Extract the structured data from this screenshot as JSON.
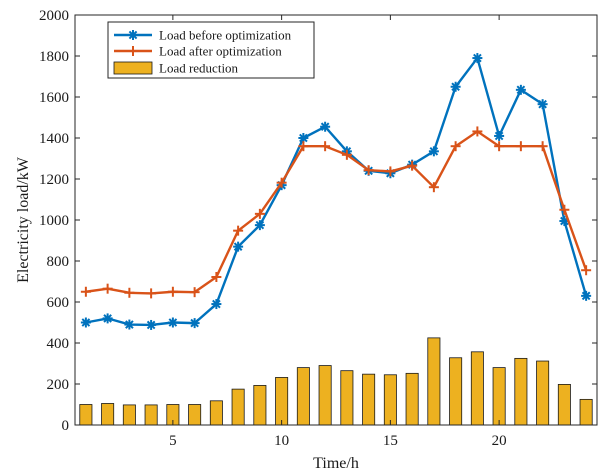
{
  "chart_data": {
    "type": "line",
    "xlabel": "Time/h",
    "ylabel": "Electricity load/kW",
    "xlim": [
      0.5,
      24.5
    ],
    "ylim": [
      0,
      2000
    ],
    "xticks": [
      5,
      10,
      15,
      20
    ],
    "yticks": [
      0,
      200,
      400,
      600,
      800,
      1000,
      1200,
      1400,
      1600,
      1800,
      2000
    ],
    "x": [
      1,
      2,
      3,
      4,
      5,
      6,
      7,
      8,
      9,
      10,
      11,
      12,
      13,
      14,
      15,
      16,
      17,
      18,
      19,
      20,
      21,
      22,
      23,
      24
    ],
    "grid": false,
    "legend_position": "top-left",
    "series": [
      {
        "name": "Load before optimization",
        "type": "line",
        "marker": "asterisk",
        "color": "#0072BD",
        "values": [
          500,
          520,
          490,
          488,
          500,
          497,
          590,
          870,
          975,
          1170,
          1400,
          1455,
          1335,
          1240,
          1228,
          1270,
          1335,
          1650,
          1790,
          1410,
          1635,
          1565,
          995,
          630
        ]
      },
      {
        "name": "Load after optimization",
        "type": "line",
        "marker": "plus",
        "color": "#D95319",
        "values": [
          650,
          665,
          645,
          642,
          650,
          648,
          722,
          948,
          1030,
          1182,
          1360,
          1360,
          1318,
          1243,
          1237,
          1265,
          1160,
          1360,
          1432,
          1360,
          1360,
          1360,
          1050,
          755
        ]
      },
      {
        "name": "Load reduction",
        "type": "bar",
        "color": "#EDB120",
        "values": [
          100,
          105,
          98,
          98,
          100,
          100,
          118,
          175,
          193,
          232,
          280,
          290,
          265,
          248,
          245,
          252,
          425,
          328,
          357,
          280,
          325,
          312,
          198,
          125
        ]
      }
    ]
  }
}
